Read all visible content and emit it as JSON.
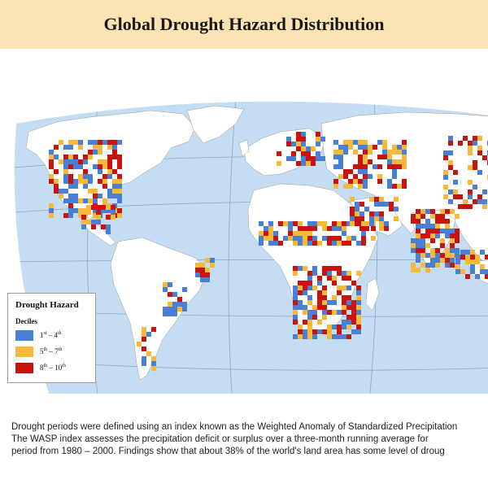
{
  "title": "Global Drought Hazard Distribution",
  "legend": {
    "title": "Drought Hazard",
    "subtitle": "Deciles",
    "items": [
      {
        "from": "1",
        "from_suffix": "st",
        "to": "4",
        "to_suffix": "th",
        "color": "#4a7fd6"
      },
      {
        "from": "5",
        "from_suffix": "th",
        "to": "7",
        "to_suffix": "th",
        "color": "#f7b938"
      },
      {
        "from": "8",
        "from_suffix": "th",
        "to": "10",
        "to_suffix": "th",
        "color": "#c8140f"
      }
    ]
  },
  "colors": {
    "ocean": "#c4ddf3",
    "land": "#ffffff",
    "graticule": "#8fa9c4",
    "low": "#4a7fd6",
    "medium": "#f7b938",
    "high": "#c8140f"
  },
  "caption": [
    "Drought periods were defined using an index known as the Weighted Anomaly of Standardized Precipitation",
    "The WASP index assesses the precipitation deficit or surplus over a three-month running average for",
    "period from 1980 – 2000. Findings show that about 38% of the world's land area has some level of droug"
  ]
}
